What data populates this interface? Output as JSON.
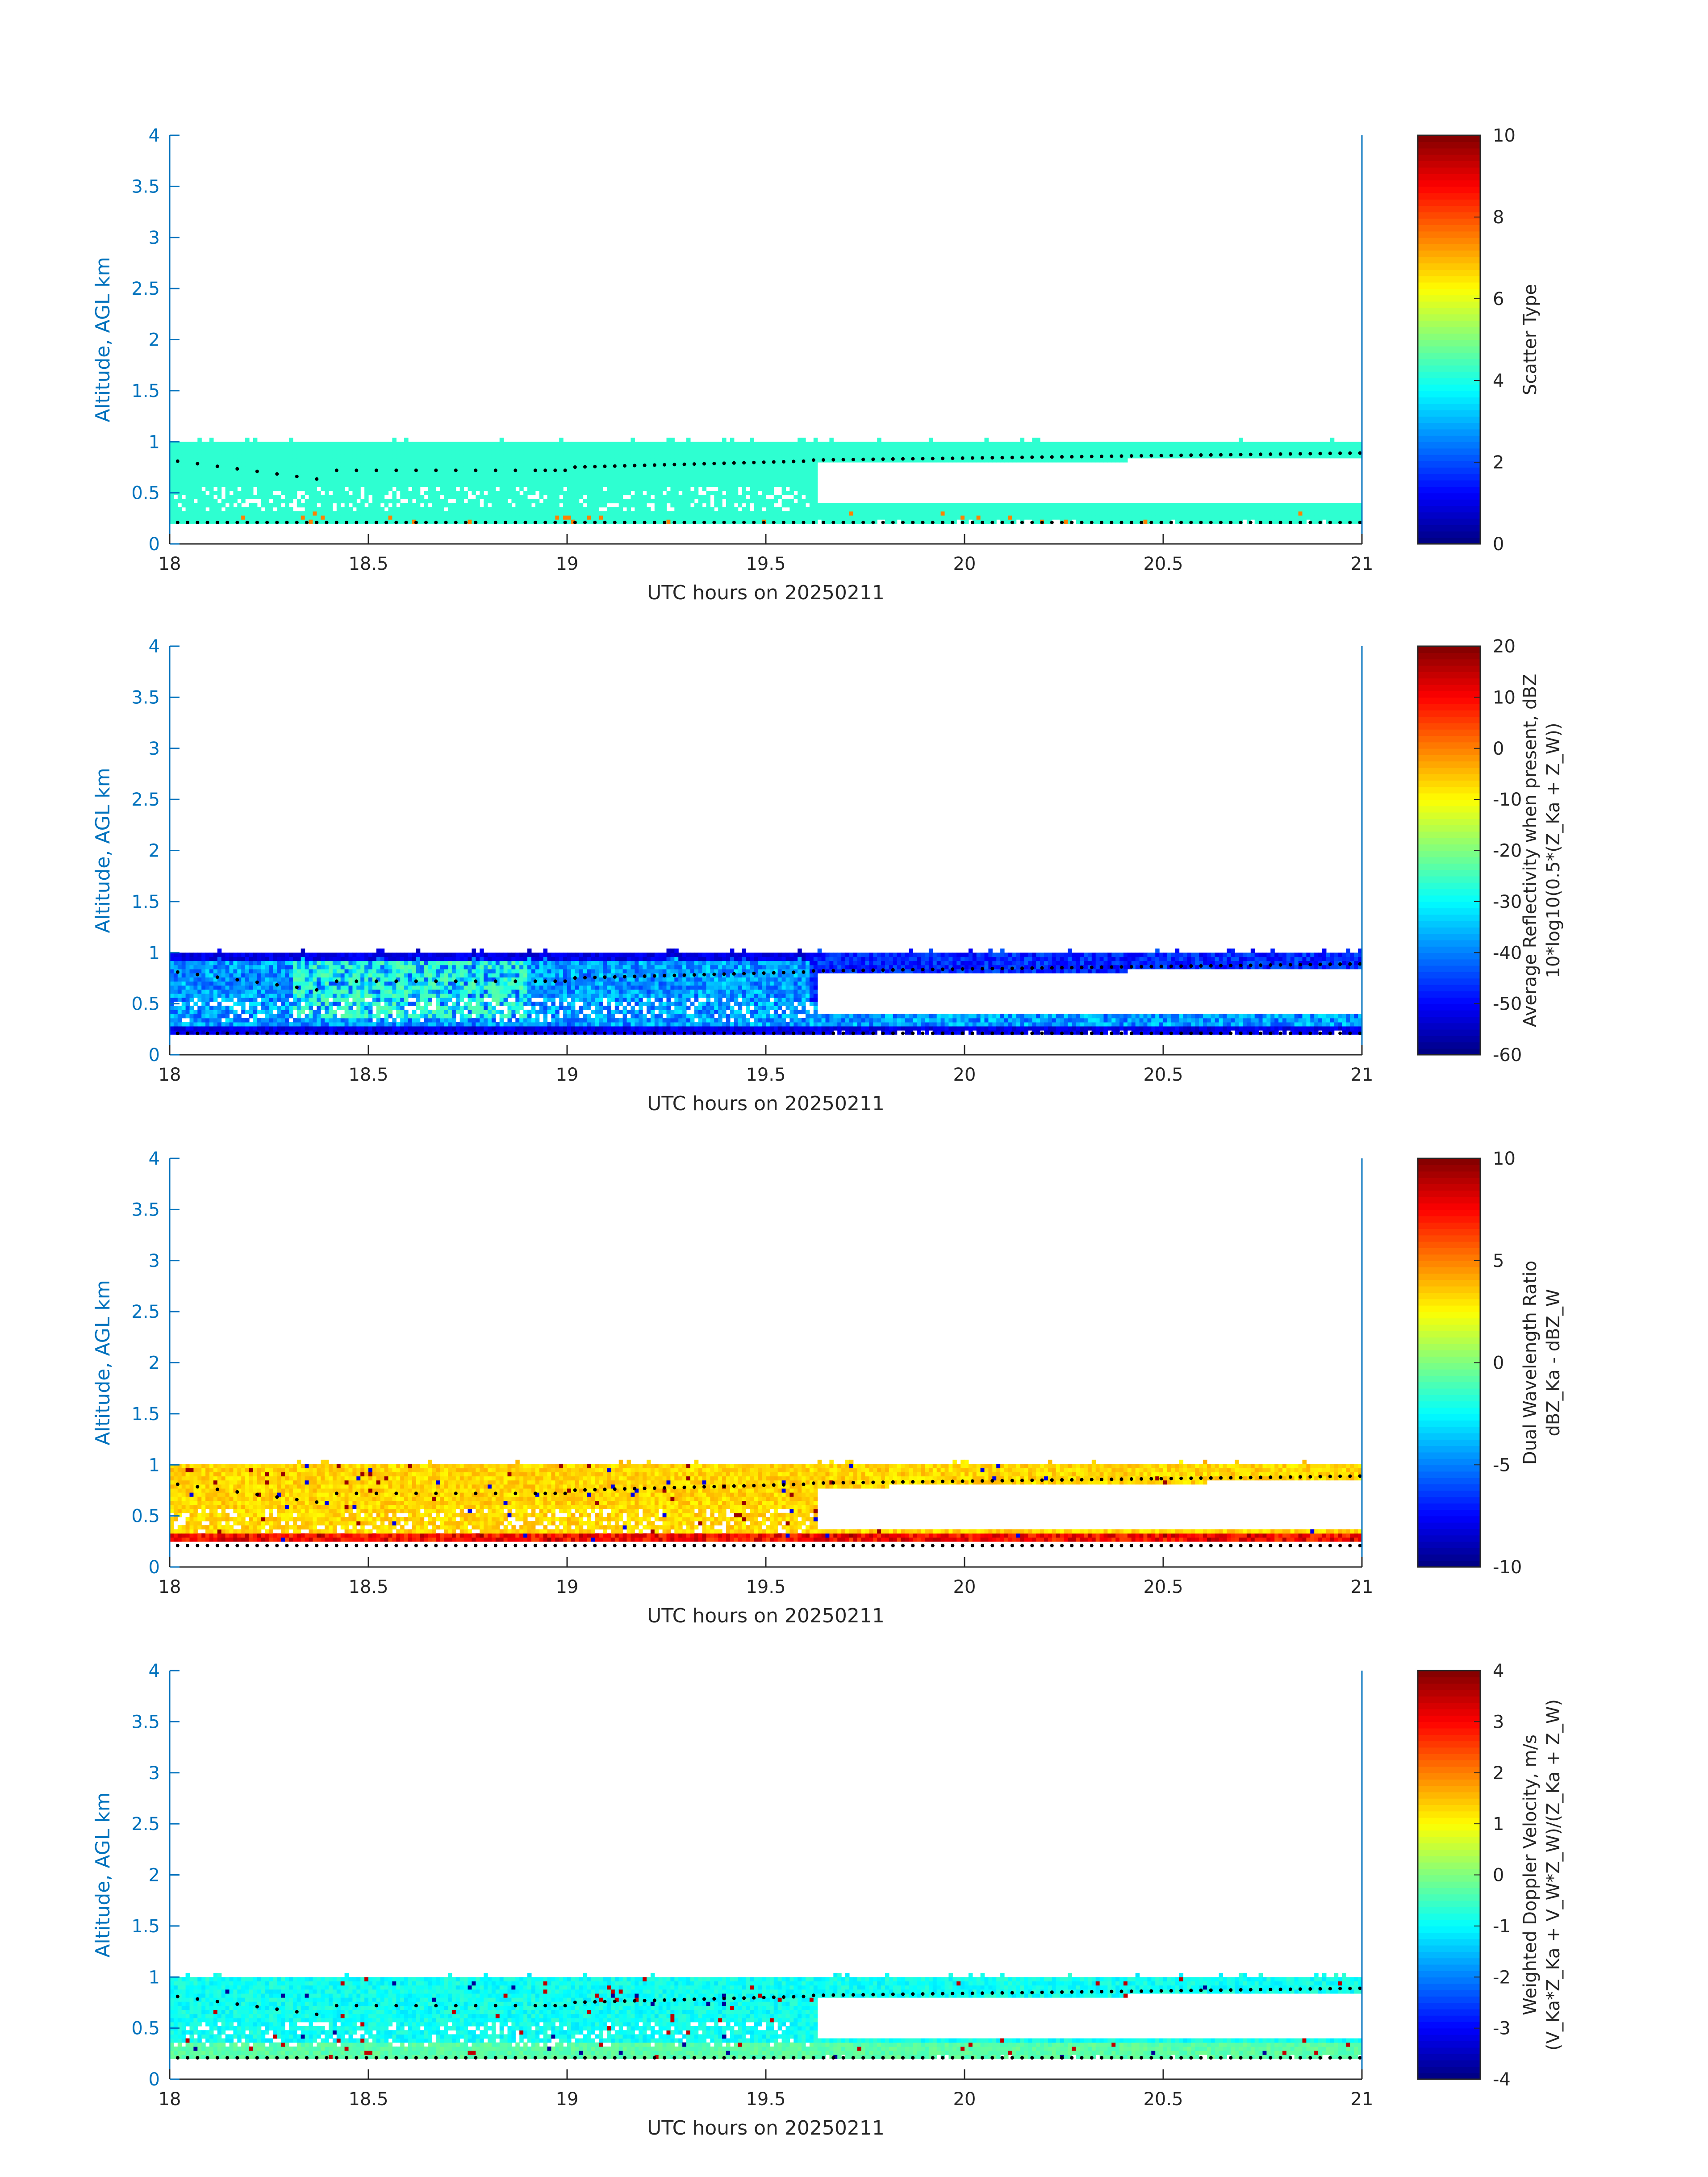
{
  "colors": {
    "axis_blue": "#0072BD",
    "text_dark": "#262626",
    "marker": "#000000"
  },
  "chart_data": [
    {
      "type": "heatmap",
      "panel": "scatter-type",
      "xlabel": "UTC hours on 20250211",
      "ylabel": "Altitude, AGL km",
      "xlim": [
        18,
        21
      ],
      "ylim": [
        0,
        4
      ],
      "x_ticks": [
        "18",
        "18.5",
        "19",
        "19.5",
        "20",
        "20.5",
        "21"
      ],
      "y_ticks": [
        "0",
        "0.5",
        "1",
        "1.5",
        "2",
        "2.5",
        "3",
        "3.5",
        "4"
      ],
      "colorbar": {
        "label_lines": [
          "Scatter Type"
        ],
        "range": [
          0,
          10
        ],
        "ticks": [
          "0",
          "2",
          "4",
          "6",
          "8",
          "10"
        ]
      },
      "cloud_layer_km": [
        0.2,
        1.0
      ],
      "fill_description": "mostly constant value ~4 (cyan) with sparse value ~7.5 (orange) near 0.25 km"
    },
    {
      "type": "heatmap",
      "panel": "reflectivity",
      "xlabel": "UTC hours on 20250211",
      "ylabel": "Altitude, AGL km",
      "xlim": [
        18,
        21
      ],
      "ylim": [
        0,
        4
      ],
      "x_ticks": [
        "18",
        "18.5",
        "19",
        "19.5",
        "20",
        "20.5",
        "21"
      ],
      "y_ticks": [
        "0",
        "0.5",
        "1",
        "1.5",
        "2",
        "2.5",
        "3",
        "3.5",
        "4"
      ],
      "colorbar": {
        "label_lines": [
          "Average Reflectivity when present, dBZ",
          "10*log10(0.5*(Z_Ka + Z_W))"
        ],
        "range": [
          -60,
          20
        ],
        "ticks": [
          "-60",
          "-50",
          "-40",
          "-30",
          "-20",
          "-10",
          "0",
          "10",
          "20"
        ]
      },
      "cloud_layer_km": [
        0.2,
        1.0
      ],
      "fill_description": "values -55 to -25 dBZ, strongest (~-25) mid-layer 18.3-18.9 h"
    },
    {
      "type": "heatmap",
      "panel": "dual-wavelength-ratio",
      "xlabel": "UTC hours on 20250211",
      "ylabel": "Altitude, AGL km",
      "xlim": [
        18,
        21
      ],
      "ylim": [
        0,
        4
      ],
      "x_ticks": [
        "18",
        "18.5",
        "19",
        "19.5",
        "20",
        "20.5",
        "21"
      ],
      "y_ticks": [
        "0",
        "0.5",
        "1",
        "1.5",
        "2",
        "2.5",
        "3",
        "3.5",
        "4"
      ],
      "colorbar": {
        "label_lines": [
          "Dual Wavelength Ratio",
          "dBZ_Ka - dBZ_W"
        ],
        "range": [
          -10,
          10
        ],
        "ticks": [
          "-10",
          "-5",
          "0",
          "5",
          "10"
        ]
      },
      "cloud_layer_km": [
        0.25,
        1.0
      ],
      "fill_description": "mostly ~+2 to +4 (yellow), bottom edge +6 to +9 (red/orange)"
    },
    {
      "type": "heatmap",
      "panel": "doppler-velocity",
      "xlabel": "UTC hours on 20250211",
      "ylabel": "Altitude, AGL km",
      "xlim": [
        18,
        21
      ],
      "ylim": [
        0,
        4
      ],
      "x_ticks": [
        "18",
        "18.5",
        "19",
        "19.5",
        "20",
        "20.5",
        "21"
      ],
      "y_ticks": [
        "0",
        "0.5",
        "1",
        "1.5",
        "2",
        "2.5",
        "3",
        "3.5",
        "4"
      ],
      "colorbar": {
        "label_lines": [
          "Weighted Doppler Velocity, m/s",
          "(V_Ka*Z_Ka + V_W*Z_W)/(Z_Ka + Z_W)"
        ],
        "range": [
          -4,
          4
        ],
        "ticks": [
          "-4",
          "-3",
          "-2",
          "-1",
          "0",
          "1",
          "2",
          "3",
          "4"
        ]
      },
      "cloud_layer_km": [
        0.2,
        1.0
      ],
      "fill_description": "mostly -1 to -1.5 m/s (cyan/light blue), lower layer ~-0.5"
    }
  ]
}
